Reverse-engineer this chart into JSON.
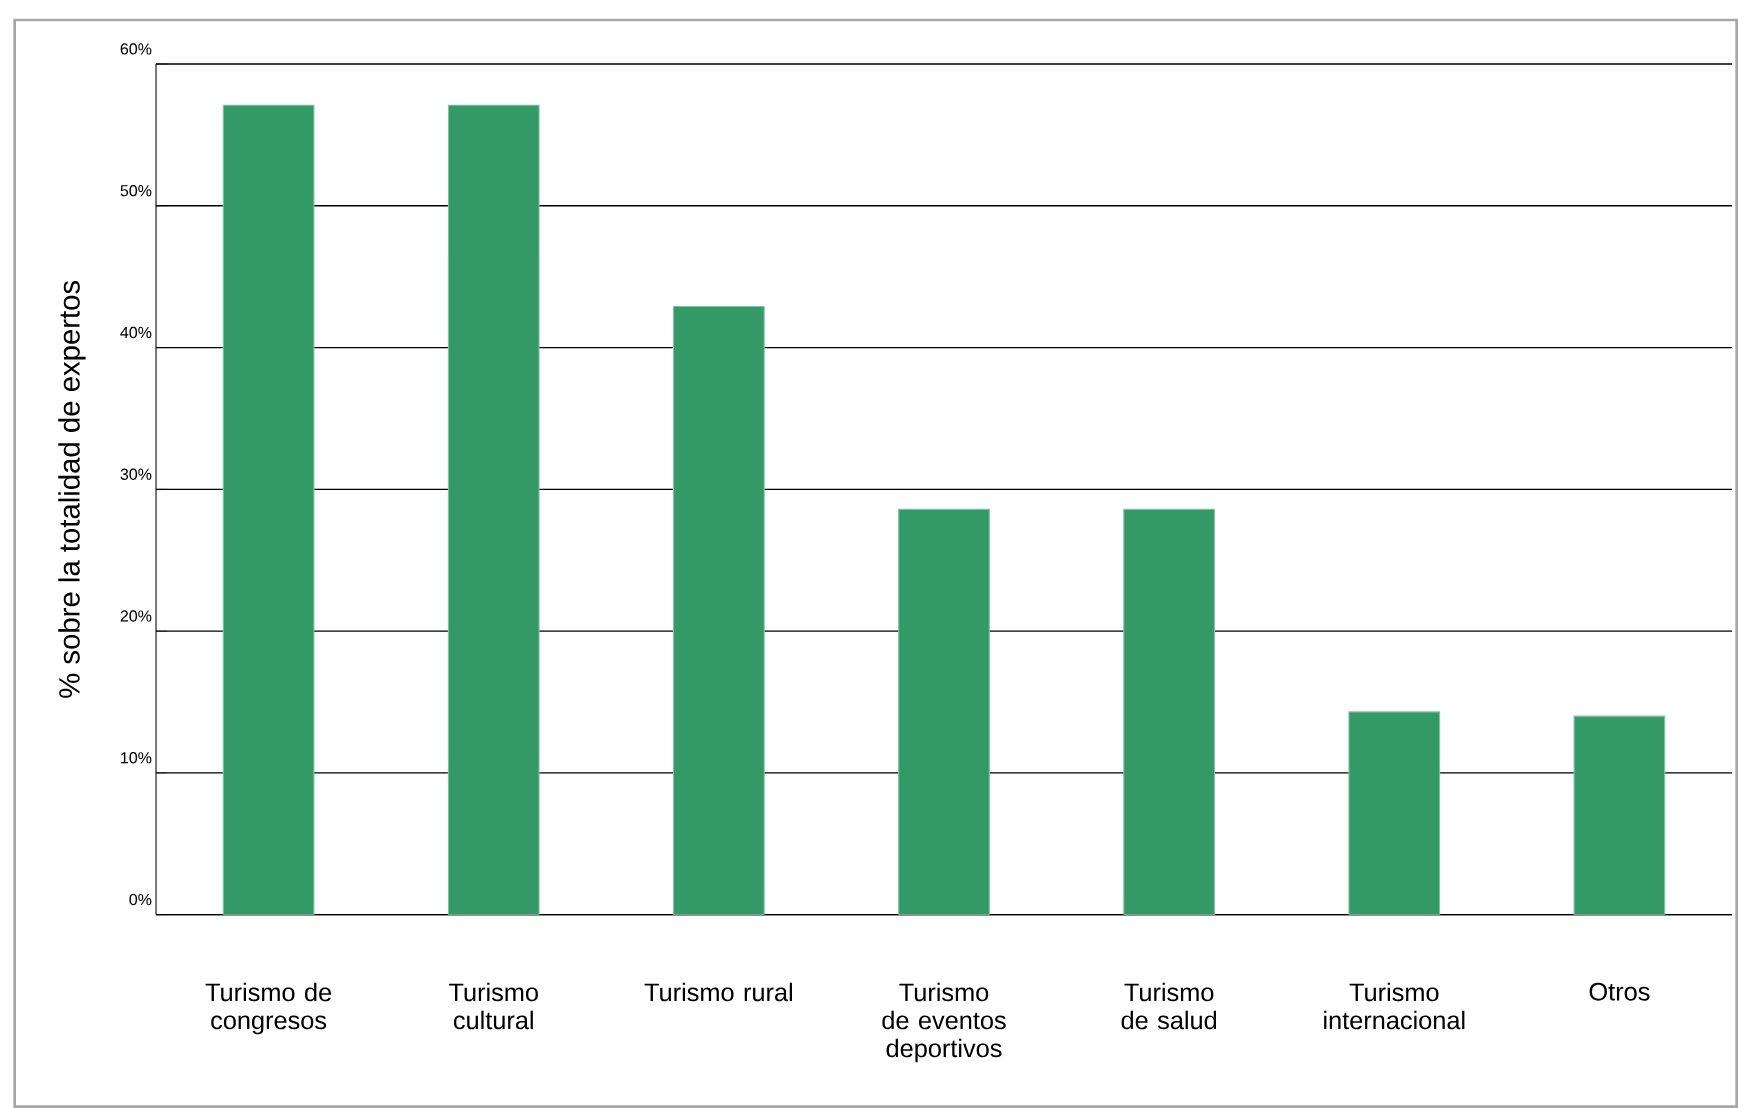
{
  "chart_data": {
    "type": "bar",
    "ylabel": "% sobre la totalidad de expertos",
    "categories": [
      "Turismo de congresos",
      "Turismo cultural",
      "Turismo rural",
      "Turismo de eventos deportivos",
      "Turismo de salud",
      "Turismo internacional",
      "Otros"
    ],
    "values": [
      57.1,
      57.1,
      42.9,
      28.6,
      28.6,
      14.3,
      14.0
    ],
    "color": "#339966",
    "ylim": [
      0,
      60
    ],
    "yticks": [
      {
        "value": 0,
        "label": "0%"
      },
      {
        "value": 10,
        "label": "10%"
      },
      {
        "value": 20,
        "label": "20%"
      },
      {
        "value": 30,
        "label": "30%"
      },
      {
        "value": 40,
        "label": "40%"
      },
      {
        "value": 50,
        "label": "50%"
      },
      {
        "value": 60,
        "label": "60%"
      }
    ],
    "grid": "y"
  }
}
